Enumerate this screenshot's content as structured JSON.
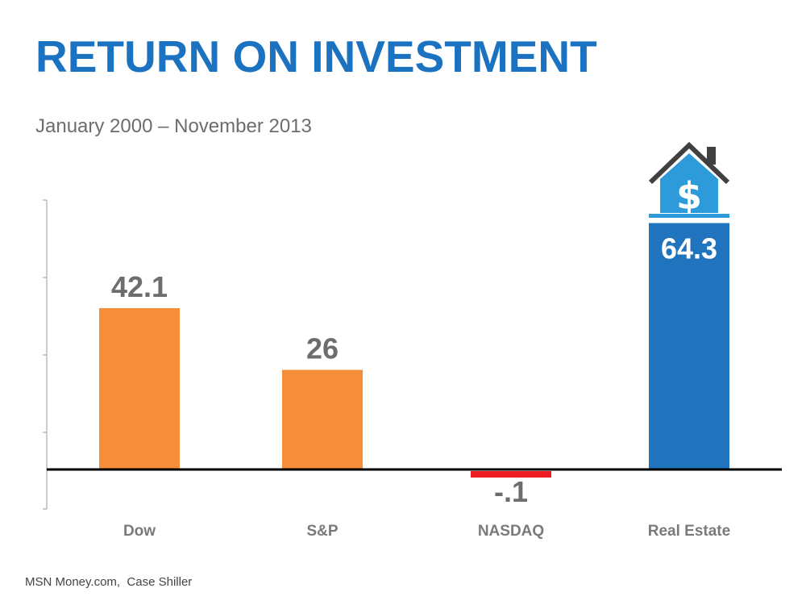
{
  "header": {
    "title": "RETURN ON INVESTMENT",
    "subtitle": "January 2000 – November 2013"
  },
  "footer": {
    "source": "MSN Money.com,  Case Shiller"
  },
  "colors": {
    "title": "#1a72c0",
    "orange": "#f58d39",
    "red": "#ee1c24",
    "blue": "#1f74bd",
    "label_gray": "#6d6d6d",
    "house_roof": "#404040",
    "house_body": "#2d9ad9"
  },
  "chart_data": {
    "type": "bar",
    "categories": [
      "Dow",
      "S&P",
      "NASDAQ",
      "Real Estate"
    ],
    "values": [
      42.1,
      26,
      -0.1,
      64.3
    ],
    "data_labels": [
      "42.1",
      "26",
      "-.1",
      "64.3"
    ],
    "bar_colors": [
      "#f58d39",
      "#f58d39",
      "#ee1c24",
      "#1f74bd"
    ],
    "title": "",
    "xlabel": "",
    "ylabel": "",
    "ylim": [
      -10,
      70
    ],
    "grid": false,
    "legend": "none",
    "icon": "house-dollar-icon"
  }
}
